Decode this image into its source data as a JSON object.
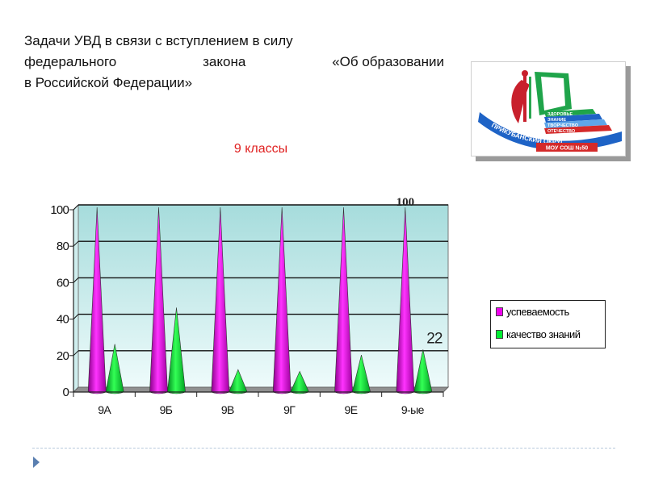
{
  "slide": {
    "heading_lines": [
      [
        "Задачи УВД в связи с вступлением в силу"
      ],
      [
        "федерального",
        "закона",
        "«Об образовании"
      ],
      [
        "в Российской Федерации»"
      ]
    ],
    "subtitle": "9 классы"
  },
  "logo": {
    "band_lines": [
      "ЗДОРОВЬЕ",
      "ЗНАНИЕ",
      "ТВОРЧЕСТВО",
      "ОТЕЧЕСТВО"
    ],
    "arc_text": "ПРИКУБАНСКИЙ ОКРУГ",
    "school": "МОУ СОШ №50"
  },
  "chart_data": {
    "type": "bar",
    "bar_shape": "cone",
    "categories": [
      "9А",
      "9Б",
      "9В",
      "9Г",
      "9Е",
      "9-ые"
    ],
    "series": [
      {
        "name": "успеваемость",
        "values": [
          100,
          100,
          100,
          100,
          100,
          100
        ],
        "color": "#ee00ee"
      },
      {
        "name": "качество знаний",
        "values": [
          25,
          45,
          11,
          10,
          19,
          22
        ],
        "color": "#00ee33"
      }
    ],
    "data_labels": [
      {
        "series": 0,
        "index": 5,
        "text": "100"
      },
      {
        "series": 1,
        "index": 5,
        "text": "22"
      }
    ],
    "y_ticks": [
      "0",
      "20",
      "40",
      "60",
      "80",
      "100"
    ],
    "ylim": [
      0,
      100
    ],
    "grid": true,
    "legend_position": "right"
  },
  "colors": {
    "plot_top": "#a6dcdc",
    "plot_bottom": "#eefbfb",
    "floor": "#909090",
    "subtitle": "#e02020"
  }
}
